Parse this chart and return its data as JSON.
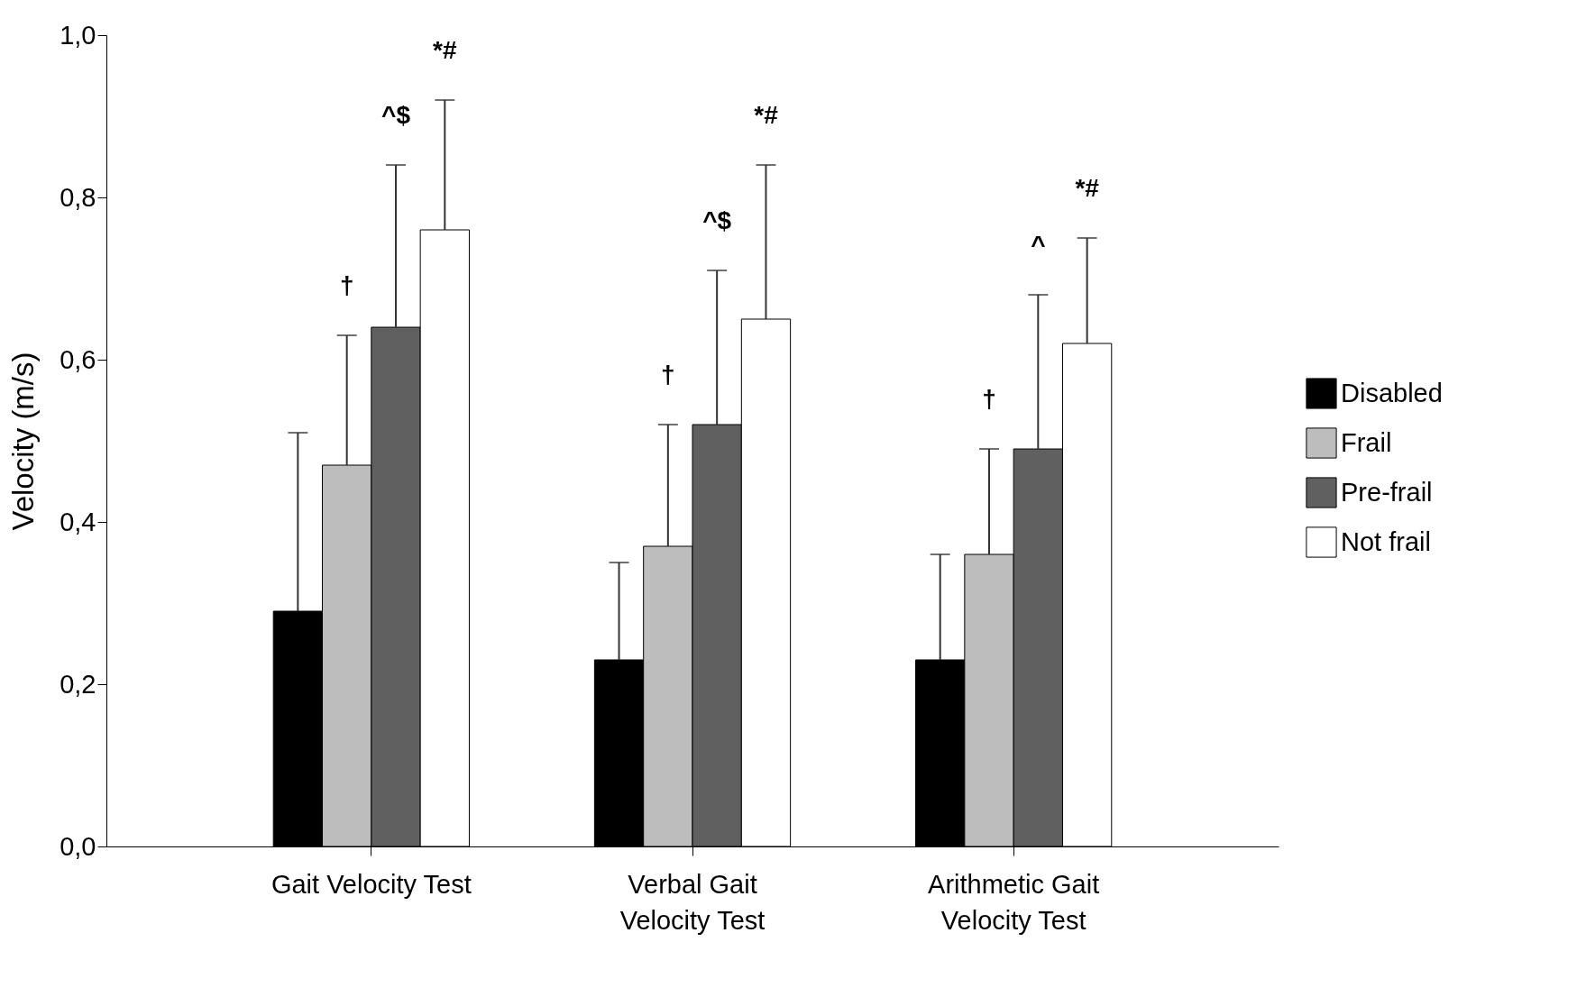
{
  "chart_data": {
    "type": "bar",
    "ylabel": "Velocity (m/s)",
    "categories": [
      "Gait Velocity Test",
      "Verbal Gait Velocity Test",
      "Arithmetic Gait Velocity Test"
    ],
    "series": [
      {
        "name": "Disabled",
        "color": "#000000",
        "values": [
          0.29,
          0.23,
          0.23
        ],
        "errors": [
          [
            0.29,
            0.51
          ],
          [
            0.23,
            0.35
          ],
          [
            0.23,
            0.36
          ]
        ]
      },
      {
        "name": "Frail",
        "color": "#bdbdbd",
        "values": [
          0.47,
          0.37,
          0.36
        ],
        "errors": [
          [
            0.47,
            0.63
          ],
          [
            0.37,
            0.52
          ],
          [
            0.36,
            0.49
          ]
        ]
      },
      {
        "name": "Pre-frail",
        "color": "#606060",
        "values": [
          0.64,
          0.52,
          0.49
        ],
        "errors": [
          [
            0.64,
            0.84
          ],
          [
            0.52,
            0.71
          ],
          [
            0.49,
            0.68
          ]
        ]
      },
      {
        "name": "Not frail",
        "color": "#ffffff",
        "values": [
          0.76,
          0.65,
          0.62
        ],
        "errors": [
          [
            0.76,
            0.92
          ],
          [
            0.65,
            0.84
          ],
          [
            0.62,
            0.75
          ]
        ]
      }
    ],
    "ylim": [
      0,
      1
    ],
    "yticks": [
      {
        "value": 0,
        "label": "0,0"
      },
      {
        "value": 0.2,
        "label": "0,2"
      },
      {
        "value": 0.4,
        "label": "0,4"
      },
      {
        "value": 0.6,
        "label": "0,6"
      },
      {
        "value": 0.8,
        "label": "0,8"
      },
      {
        "value": 1,
        "label": "1,0"
      }
    ],
    "legend": "right",
    "grid": false,
    "annotations": [
      "†",
      "^$",
      "*#",
      "†",
      "^$",
      "*#",
      "†",
      "^",
      "*#"
    ]
  }
}
